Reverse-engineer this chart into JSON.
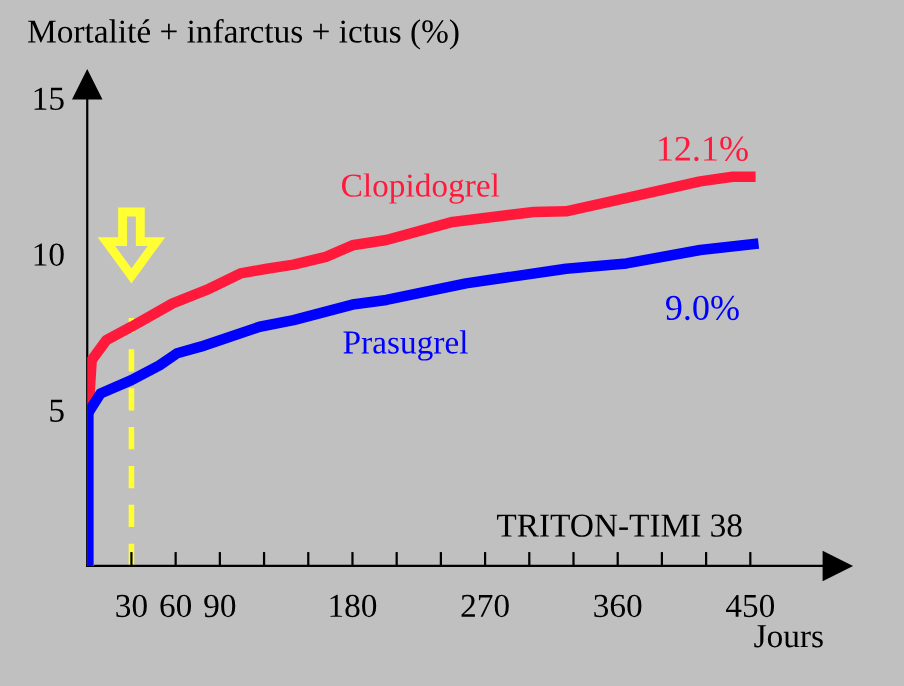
{
  "chart_data": {
    "type": "line",
    "ylabel": "Mortalité + infarctus + ictus (%)",
    "xlabel": "Jours",
    "xlim": [
      0,
      500
    ],
    "ylim": [
      0,
      15
    ],
    "xticks": [
      30,
      60,
      90,
      {
        "value": 120,
        "label": null
      },
      {
        "value": 150,
        "label": null
      },
      180,
      {
        "value": 210,
        "label": null
      },
      {
        "value": 240,
        "label": null
      },
      270,
      {
        "value": 300,
        "label": null
      },
      {
        "value": 330,
        "label": null
      },
      360,
      {
        "value": 390,
        "label": null
      },
      {
        "value": 420,
        "label": null
      },
      450
    ],
    "yticks": [
      5,
      10,
      15
    ],
    "grid": false,
    "legend": false,
    "marker": "none",
    "line_style": "solid",
    "series": [
      {
        "name": "Clopidogrel",
        "color": "#ff1a3c",
        "x": [
          1,
          1,
          3,
          13,
          30,
          58,
          81,
          104,
          122,
          140,
          162,
          180,
          203,
          248,
          303,
          325,
          370,
          416,
          438,
          450
        ],
        "values": [
          0,
          5.1,
          6.6,
          7.24,
          7.67,
          8.42,
          8.85,
          9.38,
          9.53,
          9.66,
          9.91,
          10.28,
          10.45,
          11.03,
          11.35,
          11.37,
          11.84,
          12.33,
          12.48,
          12.48
        ]
      },
      {
        "name": "Prasugrel",
        "color": "#0000ff",
        "x": [
          0.4,
          0.4,
          9,
          30,
          49,
          61,
          77,
          117,
          140,
          180,
          203,
          257,
          325,
          366,
          416,
          452
        ],
        "values": [
          0,
          4.89,
          5.53,
          5.96,
          6.43,
          6.82,
          7.03,
          7.67,
          7.88,
          8.38,
          8.53,
          9.06,
          9.53,
          9.7,
          10.13,
          10.32
        ]
      }
    ],
    "ref_lines": [
      {
        "axis": "x",
        "value": 30,
        "label": null,
        "color": "#ffff33",
        "line_style": "dashed"
      }
    ],
    "annotations": [
      "12.1%",
      "9.0%",
      "TRITON-TIMI 38"
    ]
  }
}
